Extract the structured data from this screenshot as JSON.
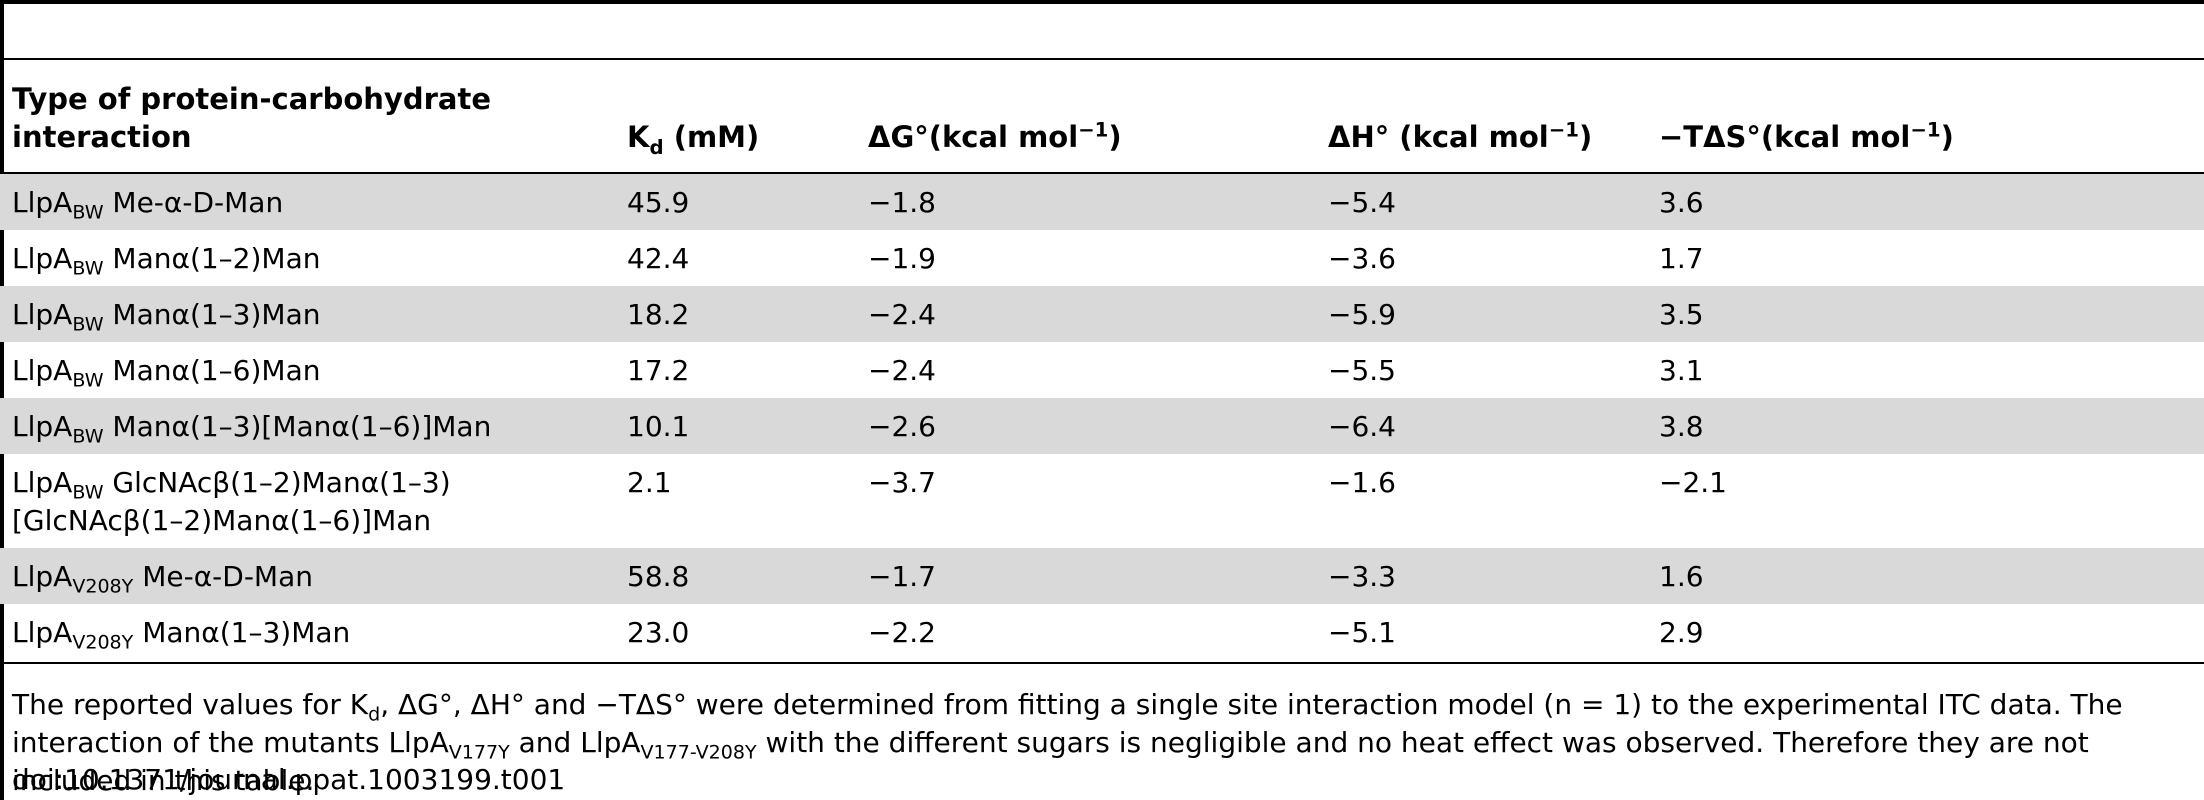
{
  "headers": {
    "col0": "Type of protein-carbohydrate interaction",
    "col1": "K",
    "col1_sub": "d",
    "col1_unit": " (mM)",
    "col2": "ΔG°(kcal mol",
    "col2_sup": "−1",
    "col2_end": ")",
    "col3": "ΔH° (kcal mol",
    "col3_sup": "−1",
    "col3_end": ")",
    "col4": "−TΔS°(kcal mol",
    "col4_sup": "−1",
    "col4_end": ")"
  },
  "rows": [
    {
      "prot": "LlpA",
      "sub": "BW",
      "sugar": "Me-α-D-Man",
      "kd": "45.9",
      "dg": "−1.8",
      "dh": "−5.4",
      "tds": "3.6"
    },
    {
      "prot": "LlpA",
      "sub": "BW",
      "sugar": "Manα(1–2)Man",
      "kd": "42.4",
      "dg": "−1.9",
      "dh": "−3.6",
      "tds": "1.7"
    },
    {
      "prot": "LlpA",
      "sub": "BW",
      "sugar": "Manα(1–3)Man",
      "kd": "18.2",
      "dg": "−2.4",
      "dh": "−5.9",
      "tds": "3.5"
    },
    {
      "prot": "LlpA",
      "sub": "BW",
      "sugar": "Manα(1–6)Man",
      "kd": "17.2",
      "dg": "−2.4",
      "dh": "−5.5",
      "tds": "3.1"
    },
    {
      "prot": "LlpA",
      "sub": "BW",
      "sugar": "Manα(1–3)[Manα(1–6)]Man",
      "kd": "10.1",
      "dg": "−2.6",
      "dh": "−6.4",
      "tds": "3.8"
    },
    {
      "prot": "LlpA",
      "sub": "BW",
      "sugar": "GlcNAcβ(1–2)Manα(1–3)[GlcNAcβ(1–2)Manα(1–6)]Man",
      "kd": "2.1",
      "dg": "−3.7",
      "dh": "−1.6",
      "tds": "−2.1"
    },
    {
      "prot": "LlpA",
      "sub": "V208Y",
      "sugar": "Me-α-D-Man",
      "kd": "58.8",
      "dg": "−1.7",
      "dh": "−3.3",
      "tds": "1.6"
    },
    {
      "prot": "LlpA",
      "sub": "V208Y",
      "sugar": "Manα(1–3)Man",
      "kd": "23.0",
      "dg": "−2.2",
      "dh": "−5.1",
      "tds": "2.9"
    }
  ],
  "footnote": {
    "p1": "The reported values for K",
    "p1_sub": "d",
    "p2": ", ΔG°, ΔH° and −TΔS° were determined from fitting a single site interaction model (n = 1) to the experimental ITC data. The interaction of the mutants LlpA",
    "p2_sub": "V177Y",
    "p3": " and LlpA",
    "p3_sub": "V177-V208Y",
    "p4": " with the different sugars is negligible and no heat effect was observed. Therefore they are not included in this table."
  },
  "doi": "doi:10.1371/journal.ppat.1003199.t001"
}
